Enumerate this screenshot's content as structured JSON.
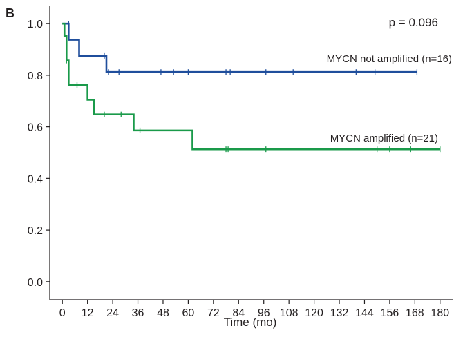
{
  "chart_data": {
    "type": "line",
    "panel_label": "B",
    "title": "",
    "xlabel": "Time (mo)",
    "ylabel": "",
    "xlim": [
      -6,
      186
    ],
    "ylim": [
      -0.07,
      1.07
    ],
    "x_ticks": [
      0,
      12,
      24,
      36,
      48,
      60,
      72,
      84,
      96,
      108,
      120,
      132,
      144,
      156,
      168,
      180
    ],
    "y_ticks": [
      0.0,
      0.2,
      0.4,
      0.6,
      0.8,
      1.0
    ],
    "y_tick_labels": [
      "0.0",
      "0.2",
      "0.4",
      "0.6",
      "0.8",
      "1.0"
    ],
    "grid": false,
    "annotations": {
      "p_value": "p = 0.096"
    },
    "series": [
      {
        "name": "MYCN not amplified (n=16)",
        "color": "#1f4e9c",
        "steps": [
          [
            0,
            1.0
          ],
          [
            3,
            0.9375
          ],
          [
            8,
            0.875
          ],
          [
            21,
            0.8125
          ],
          [
            169,
            0.8125
          ]
        ],
        "censored": [
          [
            3,
            1.0
          ],
          [
            20,
            0.875
          ],
          [
            22,
            0.8125
          ],
          [
            27,
            0.8125
          ],
          [
            47,
            0.8125
          ],
          [
            53,
            0.8125
          ],
          [
            60,
            0.8125
          ],
          [
            78,
            0.8125
          ],
          [
            80,
            0.8125
          ],
          [
            97,
            0.8125
          ],
          [
            110,
            0.8125
          ],
          [
            140,
            0.8125
          ],
          [
            149,
            0.8125
          ],
          [
            169,
            0.8125
          ]
        ]
      },
      {
        "name": "MYCN amplified (n=21)",
        "color": "#1a9a4a",
        "steps": [
          [
            0,
            1.0
          ],
          [
            1,
            0.952
          ],
          [
            2,
            0.857
          ],
          [
            3,
            0.762
          ],
          [
            12,
            0.705
          ],
          [
            15,
            0.648
          ],
          [
            34,
            0.586
          ],
          [
            62,
            0.513
          ],
          [
            180,
            0.513
          ]
        ],
        "censored": [
          [
            2,
            0.857
          ],
          [
            7,
            0.762
          ],
          [
            20,
            0.648
          ],
          [
            28,
            0.648
          ],
          [
            37,
            0.586
          ],
          [
            78,
            0.513
          ],
          [
            79,
            0.513
          ],
          [
            97,
            0.513
          ],
          [
            150,
            0.513
          ],
          [
            156,
            0.513
          ],
          [
            166,
            0.513
          ],
          [
            180,
            0.513
          ]
        ]
      }
    ]
  }
}
